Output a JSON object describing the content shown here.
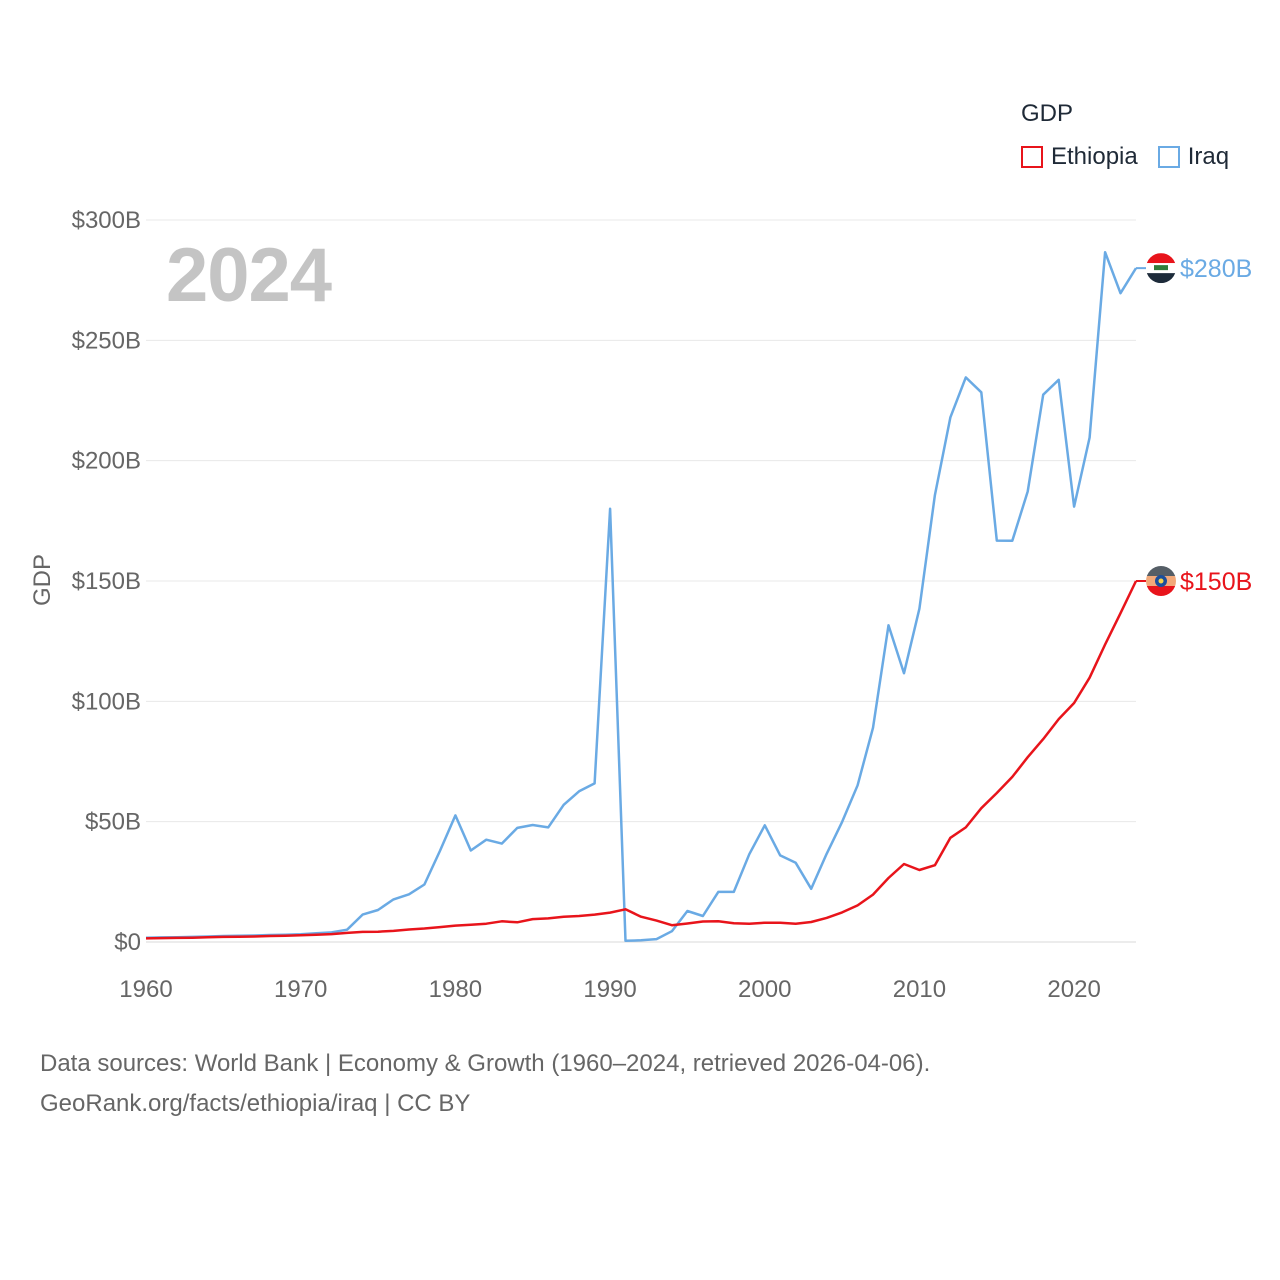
{
  "chart_data": {
    "type": "line",
    "title": "GDP",
    "ylabel": "GDP",
    "xlabel": "",
    "year_label": "2024",
    "xlim": [
      1960,
      2024
    ],
    "ylim": [
      0,
      300
    ],
    "y_ticks": [
      {
        "value": 0,
        "label": "$0"
      },
      {
        "value": 50,
        "label": "$50B"
      },
      {
        "value": 100,
        "label": "$100B"
      },
      {
        "value": 150,
        "label": "$150B"
      },
      {
        "value": 200,
        "label": "$200B"
      },
      {
        "value": 250,
        "label": "$250B"
      },
      {
        "value": 300,
        "label": "$300B"
      }
    ],
    "x_ticks": [
      {
        "value": 1960,
        "label": "1960"
      },
      {
        "value": 1970,
        "label": "1970"
      },
      {
        "value": 1980,
        "label": "1980"
      },
      {
        "value": 1990,
        "label": "1990"
      },
      {
        "value": 2000,
        "label": "2000"
      },
      {
        "value": 2010,
        "label": "2010"
      },
      {
        "value": 2020,
        "label": "2020"
      }
    ],
    "grid": true,
    "legend_position": "top-right",
    "series": [
      {
        "name": "Ethiopia",
        "color": "#e8141b",
        "end_label": "$150B",
        "x": [
          1960,
          1961,
          1962,
          1963,
          1964,
          1965,
          1966,
          1967,
          1968,
          1969,
          1970,
          1971,
          1972,
          1973,
          1974,
          1975,
          1976,
          1977,
          1978,
          1979,
          1980,
          1981,
          1982,
          1983,
          1984,
          1985,
          1986,
          1987,
          1988,
          1989,
          1990,
          1991,
          1992,
          1993,
          1994,
          1995,
          1996,
          1997,
          1998,
          1999,
          2000,
          2001,
          2002,
          2003,
          2004,
          2005,
          2006,
          2007,
          2008,
          2009,
          2010,
          2011,
          2012,
          2013,
          2014,
          2015,
          2016,
          2017,
          2018,
          2019,
          2020,
          2021,
          2022,
          2023,
          2024
        ],
        "values": [
          1.5,
          1.6,
          1.7,
          1.8,
          2.0,
          2.1,
          2.2,
          2.3,
          2.5,
          2.6,
          2.8,
          3.0,
          3.3,
          3.8,
          4.2,
          4.3,
          4.6,
          5.2,
          5.6,
          6.2,
          6.8,
          7.2,
          7.6,
          8.6,
          8.2,
          9.5,
          9.8,
          10.5,
          10.8,
          11.4,
          12.2,
          13.6,
          10.5,
          8.9,
          7.0,
          7.7,
          8.5,
          8.6,
          7.8,
          7.6,
          8.0,
          8.0,
          7.6,
          8.3,
          10.0,
          12.3,
          15.2,
          19.7,
          26.6,
          32.4,
          29.9,
          31.9,
          43.3,
          47.6,
          55.6,
          61.9,
          68.6,
          76.8,
          84.3,
          92.6,
          99.3,
          109.8,
          123.6,
          136.6,
          150.0
        ]
      },
      {
        "name": "Iraq",
        "color": "#6aaae4",
        "end_label": "$280B",
        "x": [
          1960,
          1961,
          1962,
          1963,
          1964,
          1965,
          1966,
          1967,
          1968,
          1969,
          1970,
          1971,
          1972,
          1973,
          1974,
          1975,
          1976,
          1977,
          1978,
          1979,
          1980,
          1981,
          1982,
          1983,
          1984,
          1985,
          1986,
          1987,
          1988,
          1989,
          1990,
          1991,
          1992,
          1993,
          1994,
          1995,
          1996,
          1997,
          1998,
          1999,
          2000,
          2001,
          2002,
          2003,
          2004,
          2005,
          2006,
          2007,
          2008,
          2009,
          2010,
          2011,
          2012,
          2013,
          2014,
          2015,
          2016,
          2017,
          2018,
          2019,
          2020,
          2021,
          2022,
          2023,
          2024
        ],
        "values": [
          1.8,
          1.9,
          2.0,
          2.1,
          2.3,
          2.5,
          2.6,
          2.7,
          2.9,
          3.0,
          3.2,
          3.6,
          4.0,
          5.1,
          11.4,
          13.3,
          17.7,
          19.8,
          23.9,
          37.8,
          52.6,
          38.0,
          42.5,
          40.9,
          47.4,
          48.6,
          47.6,
          57.0,
          62.6,
          65.9,
          180.0,
          0.5,
          0.7,
          1.2,
          4.5,
          12.9,
          10.8,
          20.8,
          20.8,
          36.5,
          48.5,
          36.0,
          32.9,
          22.1,
          36.6,
          49.9,
          65.1,
          89.0,
          131.6,
          111.7,
          138.5,
          185.7,
          218.0,
          234.6,
          228.4,
          166.8,
          166.7,
          187.2,
          227.4,
          233.6,
          180.9,
          209.6,
          286.6,
          269.6,
          280.0
        ]
      }
    ],
    "source_note": "Data sources: World Bank | Economy & Growth (1960–2024, retrieved 2026-04-06).",
    "source_link": "GeoRank.org/facts/ethiopia/iraq | CC BY"
  },
  "icons": {
    "ethiopia": "ethiopia-flag-icon",
    "iraq": "iraq-flag-icon"
  }
}
